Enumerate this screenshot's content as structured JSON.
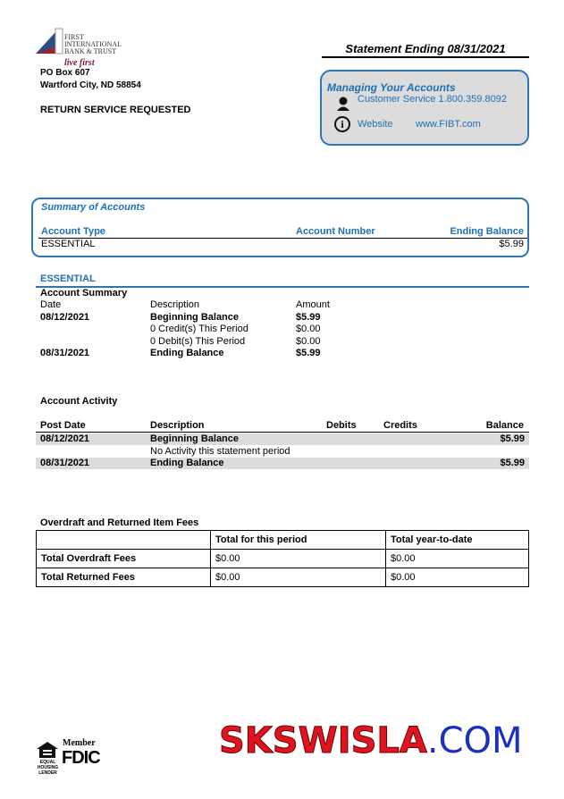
{
  "bank": {
    "name_lines": [
      "FIRST",
      "INTERNATIONAL",
      "BANK & TRUST"
    ],
    "tagline": "live first",
    "address1": "PO Box 607",
    "address2": "Wartford City, ND 58854",
    "return_notice": "RETURN SERVICE REQUESTED"
  },
  "statement": {
    "title": "Statement Ending 08/31/2021"
  },
  "manage": {
    "title": "Managing Your Accounts",
    "customer_service": "Customer Service 1.800.359.8092",
    "website_label": "Website",
    "website_url": "www.FIBT.com"
  },
  "summary": {
    "title": "Summary of Accounts",
    "headers": [
      "Account Type",
      "Account Number",
      "Ending Balance"
    ],
    "rows": [
      {
        "type": "ESSENTIAL",
        "number": "",
        "balance": "$5.99"
      }
    ]
  },
  "essential": {
    "title": "ESSENTIAL",
    "account_summary_title": "Account Summary",
    "headers": [
      "Date",
      "Description",
      "Amount"
    ],
    "rows": [
      {
        "date": "08/12/2021",
        "desc": "Beginning Balance",
        "amount": "$5.99",
        "bold": true
      },
      {
        "date": "",
        "desc": "0 Credit(s) This Period",
        "amount": "$0.00",
        "bold": false
      },
      {
        "date": "",
        "desc": "0 Debit(s) This Period",
        "amount": "$0.00",
        "bold": false
      },
      {
        "date": "08/31/2021",
        "desc": "Ending Balance",
        "amount": "$5.99",
        "bold": true
      }
    ]
  },
  "activity": {
    "title": "Account Activity",
    "headers": [
      "Post Date",
      "Description",
      "Debits",
      "Credits",
      "Balance"
    ],
    "rows": [
      {
        "date": "08/12/2021",
        "desc": "Beginning Balance",
        "balance": "$5.99"
      },
      {
        "note": "No Activity this statement period"
      },
      {
        "date": "08/31/2021",
        "desc": "Ending Balance",
        "balance": "$5.99"
      }
    ]
  },
  "fees": {
    "title": "Overdraft and Returned Item Fees",
    "headers": [
      "",
      "Total for this period",
      "Total year-to-date"
    ],
    "rows": [
      [
        "Total Overdraft Fees",
        "$0.00",
        "$0.00"
      ],
      [
        "Total Returned Fees",
        "$0.00",
        "$0.00"
      ]
    ]
  },
  "footer": {
    "member": "Member",
    "fdic": "FDIC",
    "ehl": "EQUAL HOUSING LENDER",
    "watermark_red": "SKSWISLA",
    "watermark_blue": ".COM"
  },
  "colors": {
    "accent": "#1f6fb5",
    "panel": "#dcdcdc",
    "watermark_red": "#e0141e",
    "watermark_blue": "#1a2fc0"
  }
}
